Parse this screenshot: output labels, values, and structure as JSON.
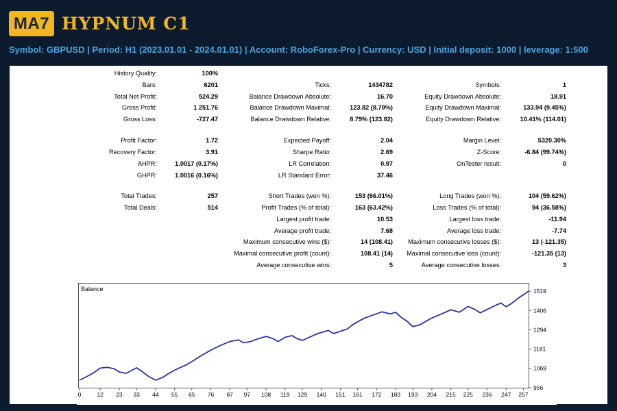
{
  "header": {
    "logo_badge": "MA7",
    "logo_title": "HYPNUM C1",
    "info_line": "Symbol: GBPUSD  |  Period: H1 (2023.01.01 - 2024.01.01)  |  Account: RoboForex-Pro  |  Currency: USD  | Initial deposit: 1000  |  leverage: 1:500"
  },
  "stats": {
    "col1": [
      {
        "label": "History Quality:",
        "value": "100%"
      },
      {
        "label": "Bars:",
        "value": "6201"
      },
      {
        "label": "Total Net Profit:",
        "value": "524.29"
      },
      {
        "label": "Gross Profit:",
        "value": "1 251.76"
      },
      {
        "label": "Gross Loss:",
        "value": "-727.47"
      },
      {
        "label": "Profit Factor:",
        "value": "1.72"
      },
      {
        "label": "Recovery Factor:",
        "value": "3.91"
      },
      {
        "label": "AHPR:",
        "value": "1.0017 (0.17%)"
      },
      {
        "label": "GHPR:",
        "value": "1.0016 (0.16%)"
      },
      {
        "label": "Total Trades:",
        "value": "257"
      },
      {
        "label": "Total Deals:",
        "value": "514"
      }
    ],
    "col2": [
      {
        "label": "Ticks:",
        "value": "1434782"
      },
      {
        "label": "Balance Drawdown Absolute:",
        "value": "16.70"
      },
      {
        "label": "Balance Drawdown Maximal:",
        "value": "123.82 (8.79%)"
      },
      {
        "label": "Balance Drawdown Relative:",
        "value": "8.79% (123.82)"
      },
      {
        "label": "Expected Payoff:",
        "value": "2.04"
      },
      {
        "label": "Sharpe Ratio:",
        "value": "2.69"
      },
      {
        "label": "LR Correlation:",
        "value": "0.97"
      },
      {
        "label": "LR Standard Error:",
        "value": "37.46"
      },
      {
        "label": "Short Trades (won %):",
        "value": "153 (66.01%)"
      },
      {
        "label": "Profit Trades (% of total):",
        "value": "163 (63.42%)"
      },
      {
        "label": "Largest profit trade:",
        "value": "10.53"
      },
      {
        "label": "Average profit trade:",
        "value": "7.68"
      },
      {
        "label": "Maximum consecutive wins ($):",
        "value": "14 (108.41)"
      },
      {
        "label": "Maximal consecutive profit (count):",
        "value": "108.41 (14)"
      },
      {
        "label": "Average consecutive wins:",
        "value": "5"
      }
    ],
    "col3": [
      {
        "label": "Symbols:",
        "value": "1"
      },
      {
        "label": "Equity Drawdown Absolute:",
        "value": "18.91"
      },
      {
        "label": "Equity Drawdown Maximal:",
        "value": "133.94 (9.45%)"
      },
      {
        "label": "Equity Drawdown Relative:",
        "value": "10.41% (114.01)"
      },
      {
        "label": "Margin Level:",
        "value": "5320.30%"
      },
      {
        "label": "Z-Score:",
        "value": "-6.84 (99.74%)"
      },
      {
        "label": "OnTester result:",
        "value": "0"
      },
      {
        "label": "Long Trades (won %):",
        "value": "104 (59.62%)"
      },
      {
        "label": "Loss Trades (% of total):",
        "value": "94 (36.58%)"
      },
      {
        "label": "Largest loss trade:",
        "value": "-11.94"
      },
      {
        "label": "Average loss trade:",
        "value": "-7.74"
      },
      {
        "label": "Maximum consecutive losses ($):",
        "value": "13 (-121.35)"
      },
      {
        "label": "Maximal consecutive loss (count):",
        "value": "-121.35 (13)"
      },
      {
        "label": "Average consecutive losses:",
        "value": "3"
      }
    ]
  },
  "chart_data": {
    "type": "line",
    "title": "Balance",
    "xlabel": "",
    "ylabel": "",
    "x_ticks": [
      "0",
      "12",
      "23",
      "33",
      "44",
      "55",
      "65",
      "76",
      "87",
      "97",
      "108",
      "119",
      "129",
      "140",
      "151",
      "161",
      "172",
      "183",
      "193",
      "204",
      "215",
      "225",
      "236",
      "247",
      "257"
    ],
    "y_ticks": [
      "956",
      "1069",
      "1181",
      "1294",
      "1406",
      "1519"
    ],
    "xlim": [
      0,
      260
    ],
    "ylim": [
      956,
      1519
    ],
    "line_color": "#2b2fa6",
    "series": [
      {
        "x": [
          0,
          4,
          8,
          12,
          16,
          20,
          23,
          27,
          30,
          33,
          36,
          40,
          44,
          48,
          51,
          55,
          58,
          62,
          65,
          70,
          76,
          81,
          87,
          92,
          95,
          99,
          103,
          108,
          112,
          115,
          119,
          123,
          126,
          129,
          133,
          137,
          140,
          144,
          147,
          151,
          155,
          158,
          161,
          165,
          170,
          175,
          180,
          183,
          186,
          190,
          193,
          197,
          200,
          204,
          210,
          215,
          220,
          225,
          229,
          232,
          236,
          240,
          244,
          247,
          250,
          254,
          257,
          260
        ],
        "y": [
          1000,
          1020,
          1042,
          1070,
          1075,
          1067,
          1048,
          1040,
          1056,
          1072,
          1052,
          1022,
          1000,
          1015,
          1035,
          1058,
          1072,
          1090,
          1108,
          1140,
          1175,
          1200,
          1225,
          1235,
          1218,
          1225,
          1240,
          1255,
          1242,
          1225,
          1250,
          1260,
          1242,
          1232,
          1250,
          1268,
          1278,
          1290,
          1272,
          1285,
          1298,
          1322,
          1340,
          1362,
          1380,
          1398,
          1386,
          1396,
          1368,
          1340,
          1312,
          1322,
          1340,
          1362,
          1388,
          1410,
          1396,
          1430,
          1412,
          1392,
          1412,
          1432,
          1450,
          1428,
          1446,
          1478,
          1498,
          1519
        ]
      }
    ]
  }
}
